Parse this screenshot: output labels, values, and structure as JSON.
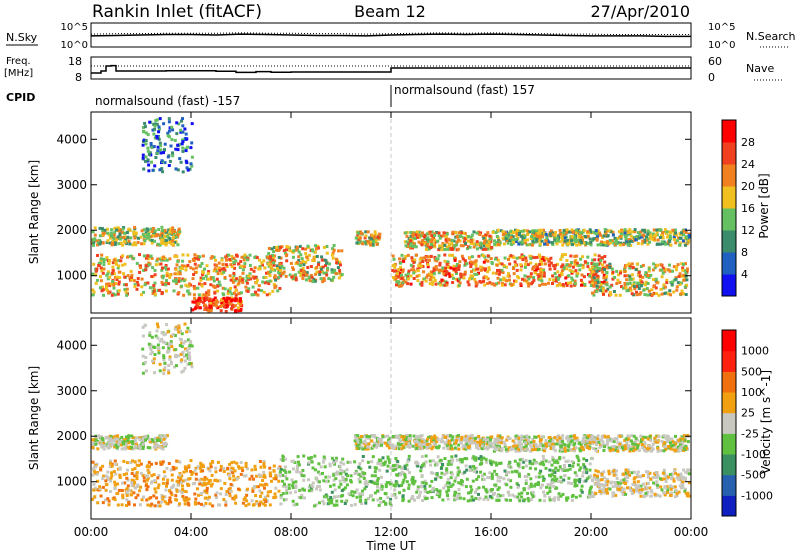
{
  "header": {
    "station": "Rankin Inlet (fitACF)",
    "beam": "Beam 12",
    "date": "27/Apr/2010"
  },
  "noise_panel": {
    "left_label": "N.Sky",
    "right_label": "N.Search",
    "left_ticks": [
      "10^5",
      "10^0"
    ],
    "right_ticks": [
      "10^5",
      "10^0"
    ]
  },
  "freq_panel": {
    "left_label_line1": "Freq.",
    "left_label_line2": "[MHz]",
    "right_label": "Nave",
    "left_ticks": [
      "18",
      "8"
    ],
    "right_ticks": [
      "60",
      "0"
    ]
  },
  "cpid_panel": {
    "label": "CPID",
    "segments": [
      {
        "text": "normalsound (fast) -157",
        "start_hour": 0
      },
      {
        "text": "normalsound (fast) 157",
        "start_hour": 12
      }
    ]
  },
  "colors": {
    "power_scale": [
      "#1010f0",
      "#2060c0",
      "#3a8c6c",
      "#64c060",
      "#f0c020",
      "#f08020",
      "#f04020",
      "#ff0000"
    ],
    "velocity_scale": [
      "#1020c0",
      "#2860b0",
      "#3a9060",
      "#60c040",
      "#c8c8c0",
      "#f0a010",
      "#f07010",
      "#ff2010",
      "#ff0000"
    ],
    "ground_scatter": "#c0c0b8"
  },
  "chart_data": [
    {
      "type": "line",
      "name": "noise",
      "x_unit": "hour UT",
      "x": [
        0,
        1,
        2,
        3,
        4,
        5,
        6,
        7,
        8,
        9,
        10,
        11,
        12,
        13,
        14,
        15,
        16,
        17,
        18,
        19,
        20,
        21,
        22,
        23,
        24
      ],
      "series": [
        {
          "values": [
            2.3,
            2.4,
            2.5,
            2.6,
            2.6,
            2.5,
            2.7,
            2.6,
            2.5,
            2.4,
            2.4,
            2.3,
            2.5,
            2.6,
            2.7,
            2.6,
            2.7,
            2.6,
            2.5,
            2.4,
            2.3,
            2.3,
            2.3,
            2.2,
            2.2
          ]
        },
        {
          "values": [
            2.7,
            2.8,
            2.8,
            2.9,
            2.9,
            2.9,
            3.0,
            2.9,
            2.9,
            2.8,
            2.8,
            2.7,
            2.8,
            2.9,
            3.0,
            2.9,
            3.0,
            2.9,
            2.8,
            2.7,
            2.7,
            2.6,
            2.6,
            2.6,
            2.6
          ]
        }
      ],
      "ylim": [
        0,
        5
      ]
    },
    {
      "type": "line",
      "name": "frequency-nave",
      "x_unit": "hour UT",
      "x": [
        0.0,
        0.4,
        0.6,
        0.8,
        1.0,
        3.0,
        5.0,
        5.8,
        6.6,
        7.2,
        8.0,
        12.0,
        24.0
      ],
      "series": [
        {
          "values": [
            10.5,
            11.5,
            14.0,
            14.2,
            11.5,
            11.6,
            11.4,
            10.8,
            11.2,
            10.9,
            11.0,
            13.0,
            13.0
          ]
        },
        {
          "values": [
            36,
            36,
            36,
            36,
            36,
            36,
            36,
            36,
            36,
            36,
            36,
            36,
            36
          ]
        }
      ],
      "ylim": [
        8,
        18
      ]
    },
    {
      "type": "heatmap",
      "quantity": "Power [dB]",
      "title": "",
      "xlabel": "Time UT",
      "ylabel": "Slant Range [km]",
      "xlim_hours": [
        0,
        24
      ],
      "x_ticks": [
        "00:00",
        "04:00",
        "08:00",
        "12:00",
        "16:00",
        "20:00",
        "00:00"
      ],
      "ylim": [
        180,
        4600
      ],
      "y_ticks": [
        1000,
        2000,
        3000,
        4000
      ],
      "colorbar_label": "Power [dB]",
      "colorbar_ticks": [
        "28",
        "24",
        "20",
        "16",
        "12",
        "8",
        "4"
      ],
      "vlim": [
        0,
        32
      ],
      "bands": [
        {
          "t0": 0.0,
          "t1": 3.5,
          "r0": 1700,
          "r1": 2100,
          "v": 16
        },
        {
          "t0": 0.0,
          "t1": 7.5,
          "r0": 600,
          "r1": 1500,
          "v": 20
        },
        {
          "t0": 4.0,
          "t1": 6.0,
          "r0": 200,
          "r1": 550,
          "v": 27
        },
        {
          "t0": 7.0,
          "t1": 10.0,
          "r0": 900,
          "r1": 1700,
          "v": 18
        },
        {
          "t0": 10.5,
          "t1": 11.5,
          "r0": 1700,
          "r1": 2000,
          "v": 17
        },
        {
          "t0": 12.0,
          "t1": 20.5,
          "r0": 800,
          "r1": 1500,
          "v": 21
        },
        {
          "t0": 12.5,
          "t1": 16.0,
          "r0": 1600,
          "r1": 2000,
          "v": 19
        },
        {
          "t0": 16.0,
          "t1": 24.0,
          "r0": 1700,
          "r1": 2050,
          "v": 15
        },
        {
          "t0": 20.0,
          "t1": 24.0,
          "r0": 600,
          "r1": 1300,
          "v": 18
        },
        {
          "t0": 2.0,
          "t1": 4.0,
          "r0": 3300,
          "r1": 4500,
          "v": 8
        }
      ]
    },
    {
      "type": "heatmap",
      "quantity": "Velocity [m s^-1]",
      "title": "",
      "xlabel": "Time UT",
      "ylabel": "Slant Range [km]",
      "xlim_hours": [
        0,
        24
      ],
      "x_ticks": [
        "00:00",
        "04:00",
        "08:00",
        "12:00",
        "16:00",
        "20:00",
        "00:00"
      ],
      "ylim": [
        180,
        4600
      ],
      "y_ticks": [
        1000,
        2000,
        3000,
        4000
      ],
      "colorbar_label": "Velocity [m s^-1]",
      "colorbar_ticks": [
        "1000",
        "500",
        "100",
        "25",
        "-25",
        "-100",
        "-500",
        "-1000"
      ],
      "vlim": [
        -1200,
        1200
      ],
      "bands": [
        {
          "t0": 0.0,
          "t1": 7.5,
          "r0": 500,
          "r1": 1500,
          "v": 250
        },
        {
          "t0": 0.0,
          "t1": 3.0,
          "r0": 1750,
          "r1": 2050,
          "v": 0
        },
        {
          "t0": 7.5,
          "t1": 12.0,
          "r0": 500,
          "r1": 1600,
          "v": -180
        },
        {
          "t0": 10.5,
          "t1": 16.0,
          "r0": 1750,
          "r1": 2050,
          "v": 0
        },
        {
          "t0": 12.0,
          "t1": 20.0,
          "r0": 600,
          "r1": 1600,
          "v": -200
        },
        {
          "t0": 16.0,
          "t1": 24.0,
          "r0": 1700,
          "r1": 2050,
          "v": 0
        },
        {
          "t0": 20.0,
          "t1": 24.0,
          "r0": 700,
          "r1": 1300,
          "v": 80
        },
        {
          "t0": 2.0,
          "t1": 4.0,
          "r0": 3400,
          "r1": 4500,
          "v": 0
        }
      ]
    }
  ]
}
